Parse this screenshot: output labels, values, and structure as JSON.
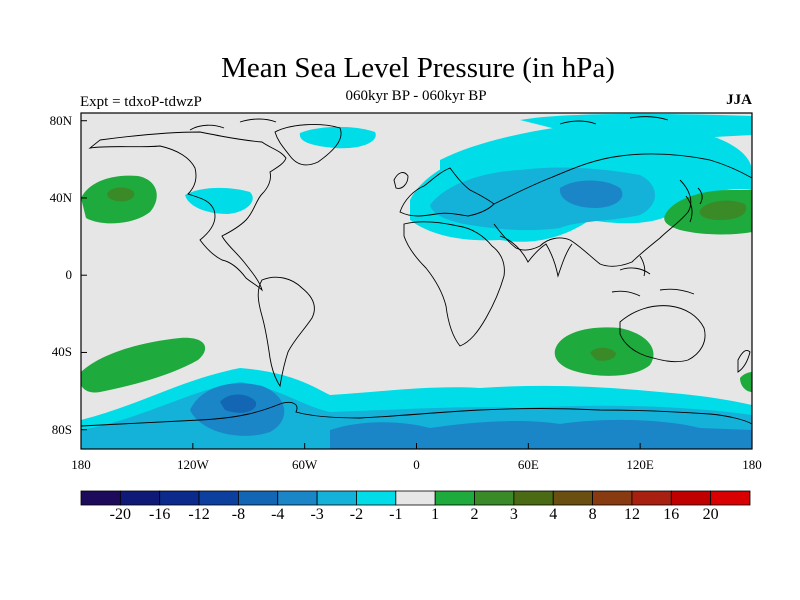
{
  "header": {
    "title": "Mean Sea Level Pressure (in hPa)",
    "subtitle": "060kyr BP - 060kyr BP",
    "left_label": "Expt = tdxoP-tdwzP",
    "right_label": "JJA"
  },
  "axes": {
    "lat_ticks": [
      "80N",
      "40N",
      "0",
      "40S",
      "80S"
    ],
    "lat_values": [
      80,
      40,
      0,
      -40,
      -80
    ],
    "lon_ticks": [
      "180",
      "120W",
      "60W",
      "0",
      "60E",
      "120E",
      "180"
    ],
    "lon_values": [
      -180,
      -120,
      -60,
      0,
      60,
      120,
      180
    ]
  },
  "colorbar": {
    "labels": [
      "-20",
      "-16",
      "-12",
      "-8",
      "-4",
      "-3",
      "-2",
      "-1",
      "1",
      "2",
      "3",
      "4",
      "8",
      "12",
      "16",
      "20"
    ],
    "colors": [
      "#1e0a5a",
      "#0f1a78",
      "#0c2a8c",
      "#0d3f9e",
      "#1266b3",
      "#1a86c8",
      "#14b2d8",
      "#00dde8",
      "#e6e6e6",
      "#1eaa3c",
      "#3a8a28",
      "#4a6a14",
      "#6a5010",
      "#883a10",
      "#a82010",
      "#c00000",
      "#d80000"
    ]
  },
  "colors": {
    "background": "#e6e6e6",
    "coastline": "#000000"
  }
}
